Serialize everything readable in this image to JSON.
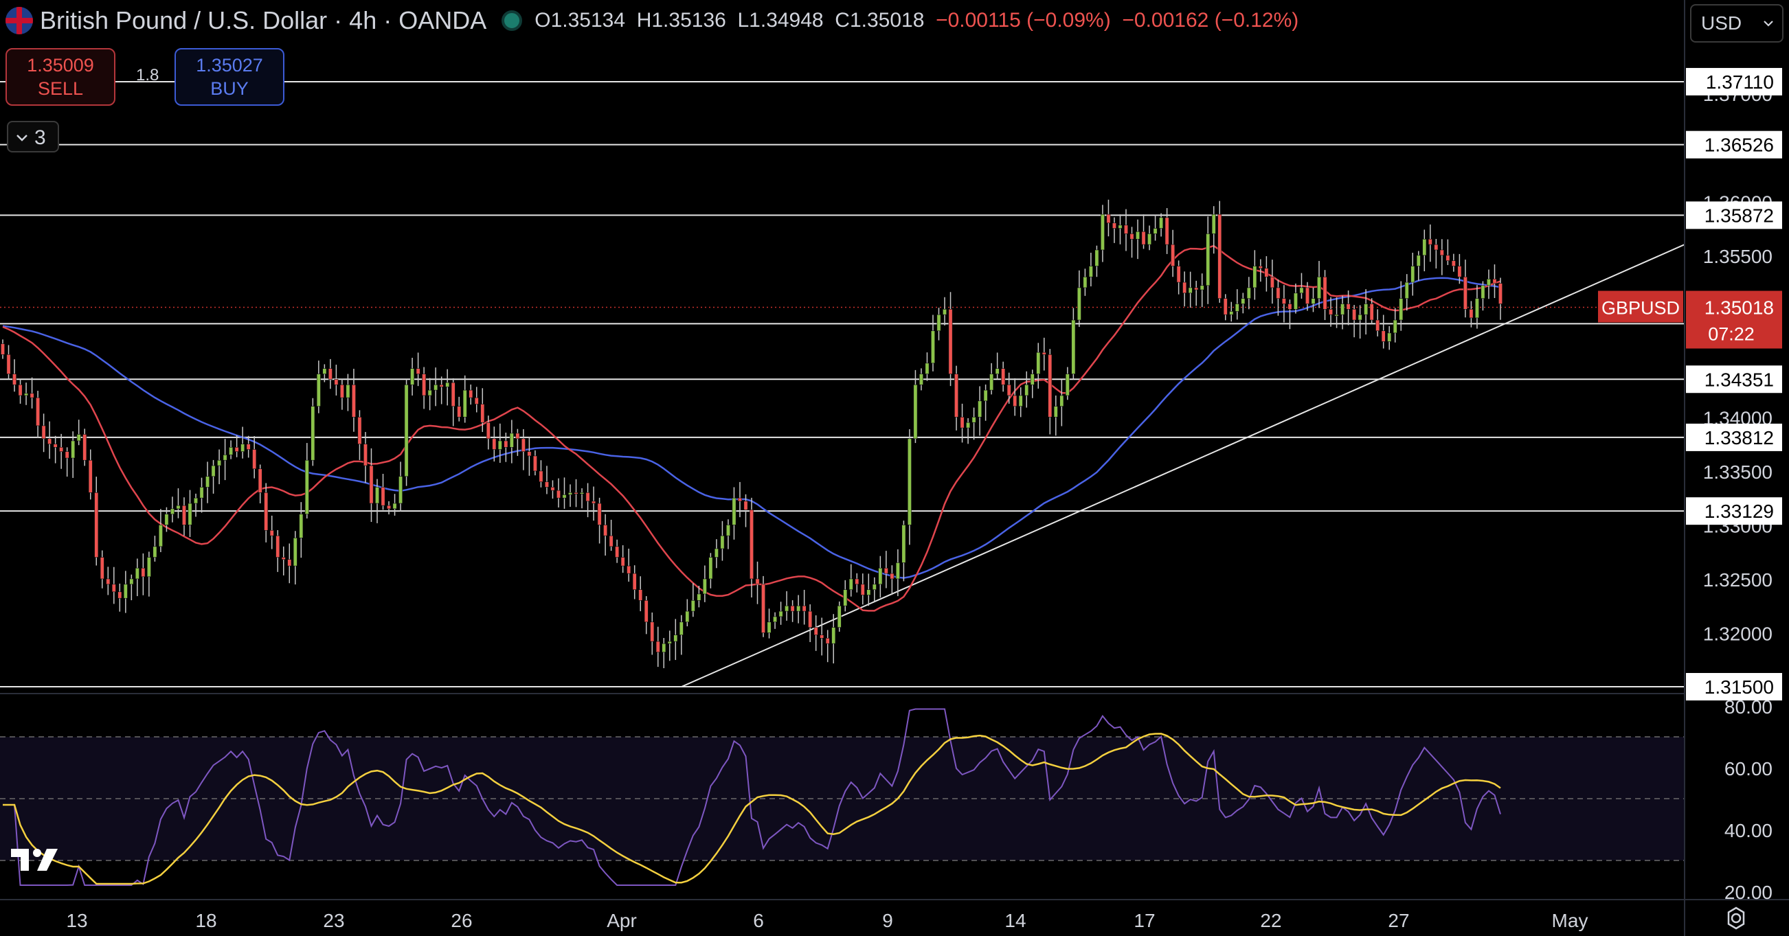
{
  "header": {
    "symbol_title": "British Pound / U.S. Dollar",
    "interval": "4h",
    "broker": "OANDA",
    "open": "O1.35134",
    "high": "H1.35136",
    "low": "L1.34948",
    "close": "C1.35018",
    "change": "−0.00115 (−0.09%)",
    "change2": "−0.00162 (−0.12%)"
  },
  "trade_panel": {
    "sell_price": "1.35009",
    "sell_label": "SELL",
    "spread": "1.8",
    "buy_price": "1.35027",
    "buy_label": "BUY",
    "indicator_count": "3"
  },
  "currency_selector": "USD",
  "colors": {
    "background": "#000000",
    "bull_candle": "#8bc34a",
    "bear_candle": "#ef5350",
    "ma_fast": "#e0454d",
    "ma_slow": "#4a63e6",
    "rsi_line": "#7e57c2",
    "rsi_ma": "#f4d03f",
    "price_tag": "#c9302c"
  },
  "chart_data": {
    "type": "candlestick",
    "symbol": "GBPUSD",
    "last_price": "1.35018",
    "countdown": "07:22",
    "price_axis": {
      "range": [
        1.315,
        1.376
      ],
      "ticks": [
        "1.37000",
        "1.36000",
        "1.35500",
        "1.35000",
        "1.34000",
        "1.33500",
        "1.33000",
        "1.32500",
        "1.32000",
        "1.31500"
      ]
    },
    "horizontal_levels": [
      "1.37110",
      "1.36526",
      "1.35872",
      "1.34866",
      "1.34351",
      "1.33812",
      "1.33129",
      "1.31500"
    ],
    "x_axis": {
      "labels": [
        "13",
        "18",
        "23",
        "26",
        "Apr",
        "6",
        "9",
        "14",
        "17",
        "22",
        "27",
        "May"
      ]
    },
    "trendline": {
      "from": [
        "Apr 1",
        1.315
      ],
      "to": [
        "May",
        1.356
      ]
    },
    "close_series": [
      1.3458,
      1.344,
      1.343,
      1.342,
      1.3422,
      1.3418,
      1.3392,
      1.338,
      1.3375,
      1.3372,
      1.3368,
      1.3362,
      1.3378,
      1.3384,
      1.336,
      1.333,
      1.327,
      1.325,
      1.3245,
      1.3238,
      1.3232,
      1.3245,
      1.325,
      1.326,
      1.3252,
      1.327,
      1.328,
      1.33,
      1.331,
      1.3315,
      1.3318,
      1.33,
      1.332,
      1.3325,
      1.3335,
      1.3345,
      1.3355,
      1.336,
      1.3365,
      1.3372,
      1.3368,
      1.3375,
      1.337,
      1.3352,
      1.333,
      1.3295,
      1.329,
      1.327,
      1.3268,
      1.3262,
      1.3288,
      1.331,
      1.336,
      1.341,
      1.344,
      1.3445,
      1.3435,
      1.343,
      1.3418,
      1.343,
      1.34,
      1.3375,
      1.3355,
      1.332,
      1.3335,
      1.3318,
      1.3315,
      1.332,
      1.3345,
      1.343,
      1.3445,
      1.344,
      1.342,
      1.3425,
      1.343,
      1.3428,
      1.3432,
      1.341,
      1.34,
      1.3425,
      1.3418,
      1.3412,
      1.3395,
      1.338,
      1.337,
      1.3378,
      1.3372,
      1.3385,
      1.338,
      1.3368,
      1.3364,
      1.335,
      1.334,
      1.3335,
      1.3332,
      1.3325,
      1.3328,
      1.333,
      1.3329,
      1.333,
      1.3322,
      1.332,
      1.33,
      1.329,
      1.328,
      1.327,
      1.3262,
      1.3255,
      1.324,
      1.323,
      1.321,
      1.3192,
      1.3182,
      1.319,
      1.3192,
      1.3198,
      1.321,
      1.322,
      1.323,
      1.3236,
      1.325,
      1.327,
      1.3278,
      1.329,
      1.33,
      1.3325,
      1.3322,
      1.3314,
      1.325,
      1.3245,
      1.32,
      1.321,
      1.3215,
      1.322,
      1.3225,
      1.322,
      1.3225,
      1.322,
      1.3205,
      1.3198,
      1.3195,
      1.319,
      1.3205,
      1.3225,
      1.324,
      1.325,
      1.3245,
      1.3235,
      1.324,
      1.3245,
      1.326,
      1.3255,
      1.325,
      1.3265,
      1.33,
      1.338,
      1.343,
      1.344,
      1.345,
      1.348,
      1.3495,
      1.35,
      1.344,
      1.34,
      1.339,
      1.3395,
      1.34,
      1.3415,
      1.3425,
      1.344,
      1.3445,
      1.343,
      1.342,
      1.341,
      1.342,
      1.343,
      1.344,
      1.346,
      1.3458,
      1.34,
      1.341,
      1.342,
      1.344,
      1.349,
      1.352,
      1.353,
      1.354,
      1.3555,
      1.3588,
      1.358,
      1.3575,
      1.3578,
      1.357,
      1.3565,
      1.3572,
      1.356,
      1.357,
      1.3575,
      1.3585,
      1.356,
      1.354,
      1.3525,
      1.3515,
      1.352,
      1.3518,
      1.3522,
      1.357,
      1.3588,
      1.351,
      1.3495,
      1.3498,
      1.3505,
      1.351,
      1.352,
      1.354,
      1.3538,
      1.353,
      1.352,
      1.351,
      1.3505,
      1.35,
      1.3515,
      1.352,
      1.3505,
      1.351,
      1.353,
      1.35,
      1.3495,
      1.3495,
      1.3505,
      1.35,
      1.349,
      1.3495,
      1.3505,
      1.349,
      1.348,
      1.347,
      1.3478,
      1.349,
      1.351,
      1.3525,
      1.354,
      1.355,
      1.3565,
      1.356,
      1.3555,
      1.355,
      1.3545,
      1.354,
      1.353,
      1.35,
      1.3492,
      1.351,
      1.3522,
      1.3528,
      1.3524,
      1.3505
    ],
    "rsi": {
      "levels": [
        "80.00",
        "60.00",
        "40.00",
        "20.00"
      ],
      "range": [
        20,
        80
      ],
      "band": [
        30,
        70
      ],
      "midline": 50
    }
  }
}
